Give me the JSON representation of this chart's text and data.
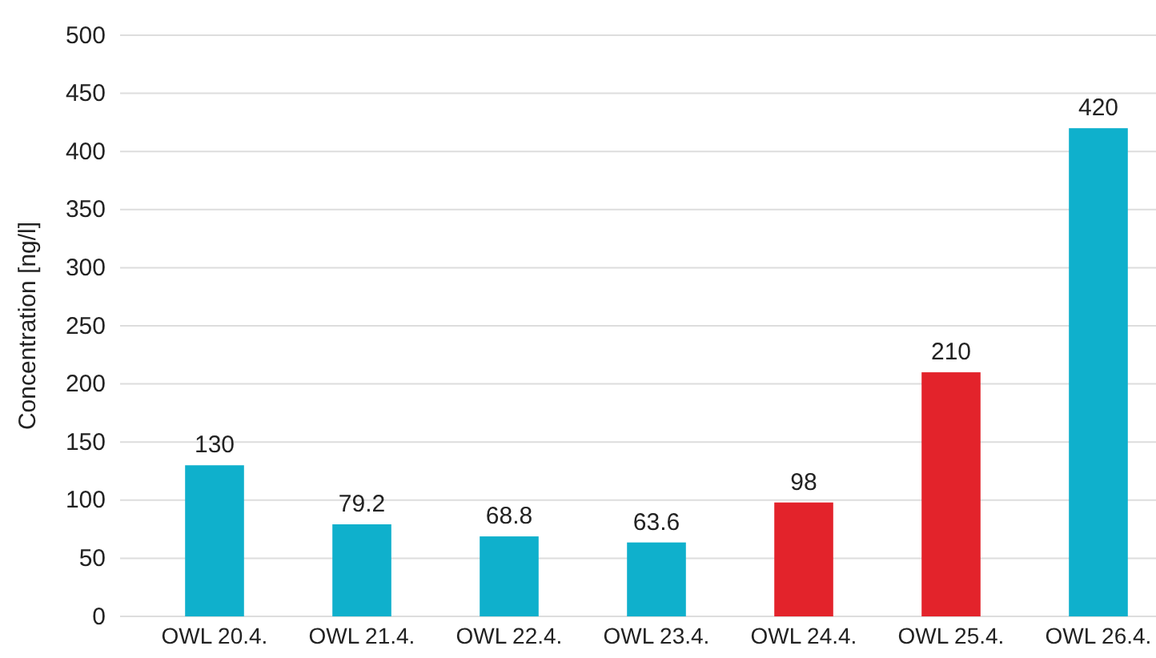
{
  "chart_data": {
    "type": "bar",
    "ylabel": "Concentration [ng/l]",
    "categories": [
      "OWL 20.4.",
      "OWL 21.4.",
      "OWL 22.4.",
      "OWL 23.4.",
      "OWL 24.4.",
      "OWL 25.4.",
      "OWL 26.4."
    ],
    "values": [
      130,
      79.2,
      68.8,
      63.6,
      98,
      210,
      420
    ],
    "colors": [
      "#0fb0cc",
      "#0fb0cc",
      "#0fb0cc",
      "#0fb0cc",
      "#e3232b",
      "#e3232b",
      "#0fb0cc"
    ],
    "ylim": [
      0,
      500
    ],
    "yticks": [
      0,
      50,
      100,
      150,
      200,
      250,
      300,
      350,
      400,
      450,
      500
    ],
    "grid": "y",
    "data_labels": true
  }
}
